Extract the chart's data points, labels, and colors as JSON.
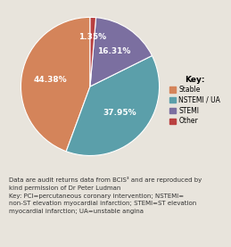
{
  "slices": [
    44.38,
    37.95,
    16.31,
    1.35
  ],
  "labels": [
    "44.38%",
    "37.95%",
    "16.31%",
    "1.35%"
  ],
  "colors": [
    "#d4845a",
    "#5b9faa",
    "#7b6fa0",
    "#b94040"
  ],
  "legend_labels": [
    "Stable",
    "NSTEMI / UA",
    "STEMI",
    "Other"
  ],
  "legend_colors": [
    "#d4845a",
    "#5b9faa",
    "#7b6fa0",
    "#b94040"
  ],
  "background_color": "#e8e4dc",
  "footer_text": "Data are audit returns data from BCIS³ and are reproduced by\nkind permission of Dr Peter Ludman\nKey: PCI=percutaneous coronary intervention; NSTEMI=\nnon-ST elevation myocardial infarction; STEMI=ST elevation\nmyocardial infarction; UA=unstable angina",
  "footer_bg": "#f0ece0",
  "startangle": 90,
  "label_color": "#ffffff",
  "label_fontsize": 6.5
}
